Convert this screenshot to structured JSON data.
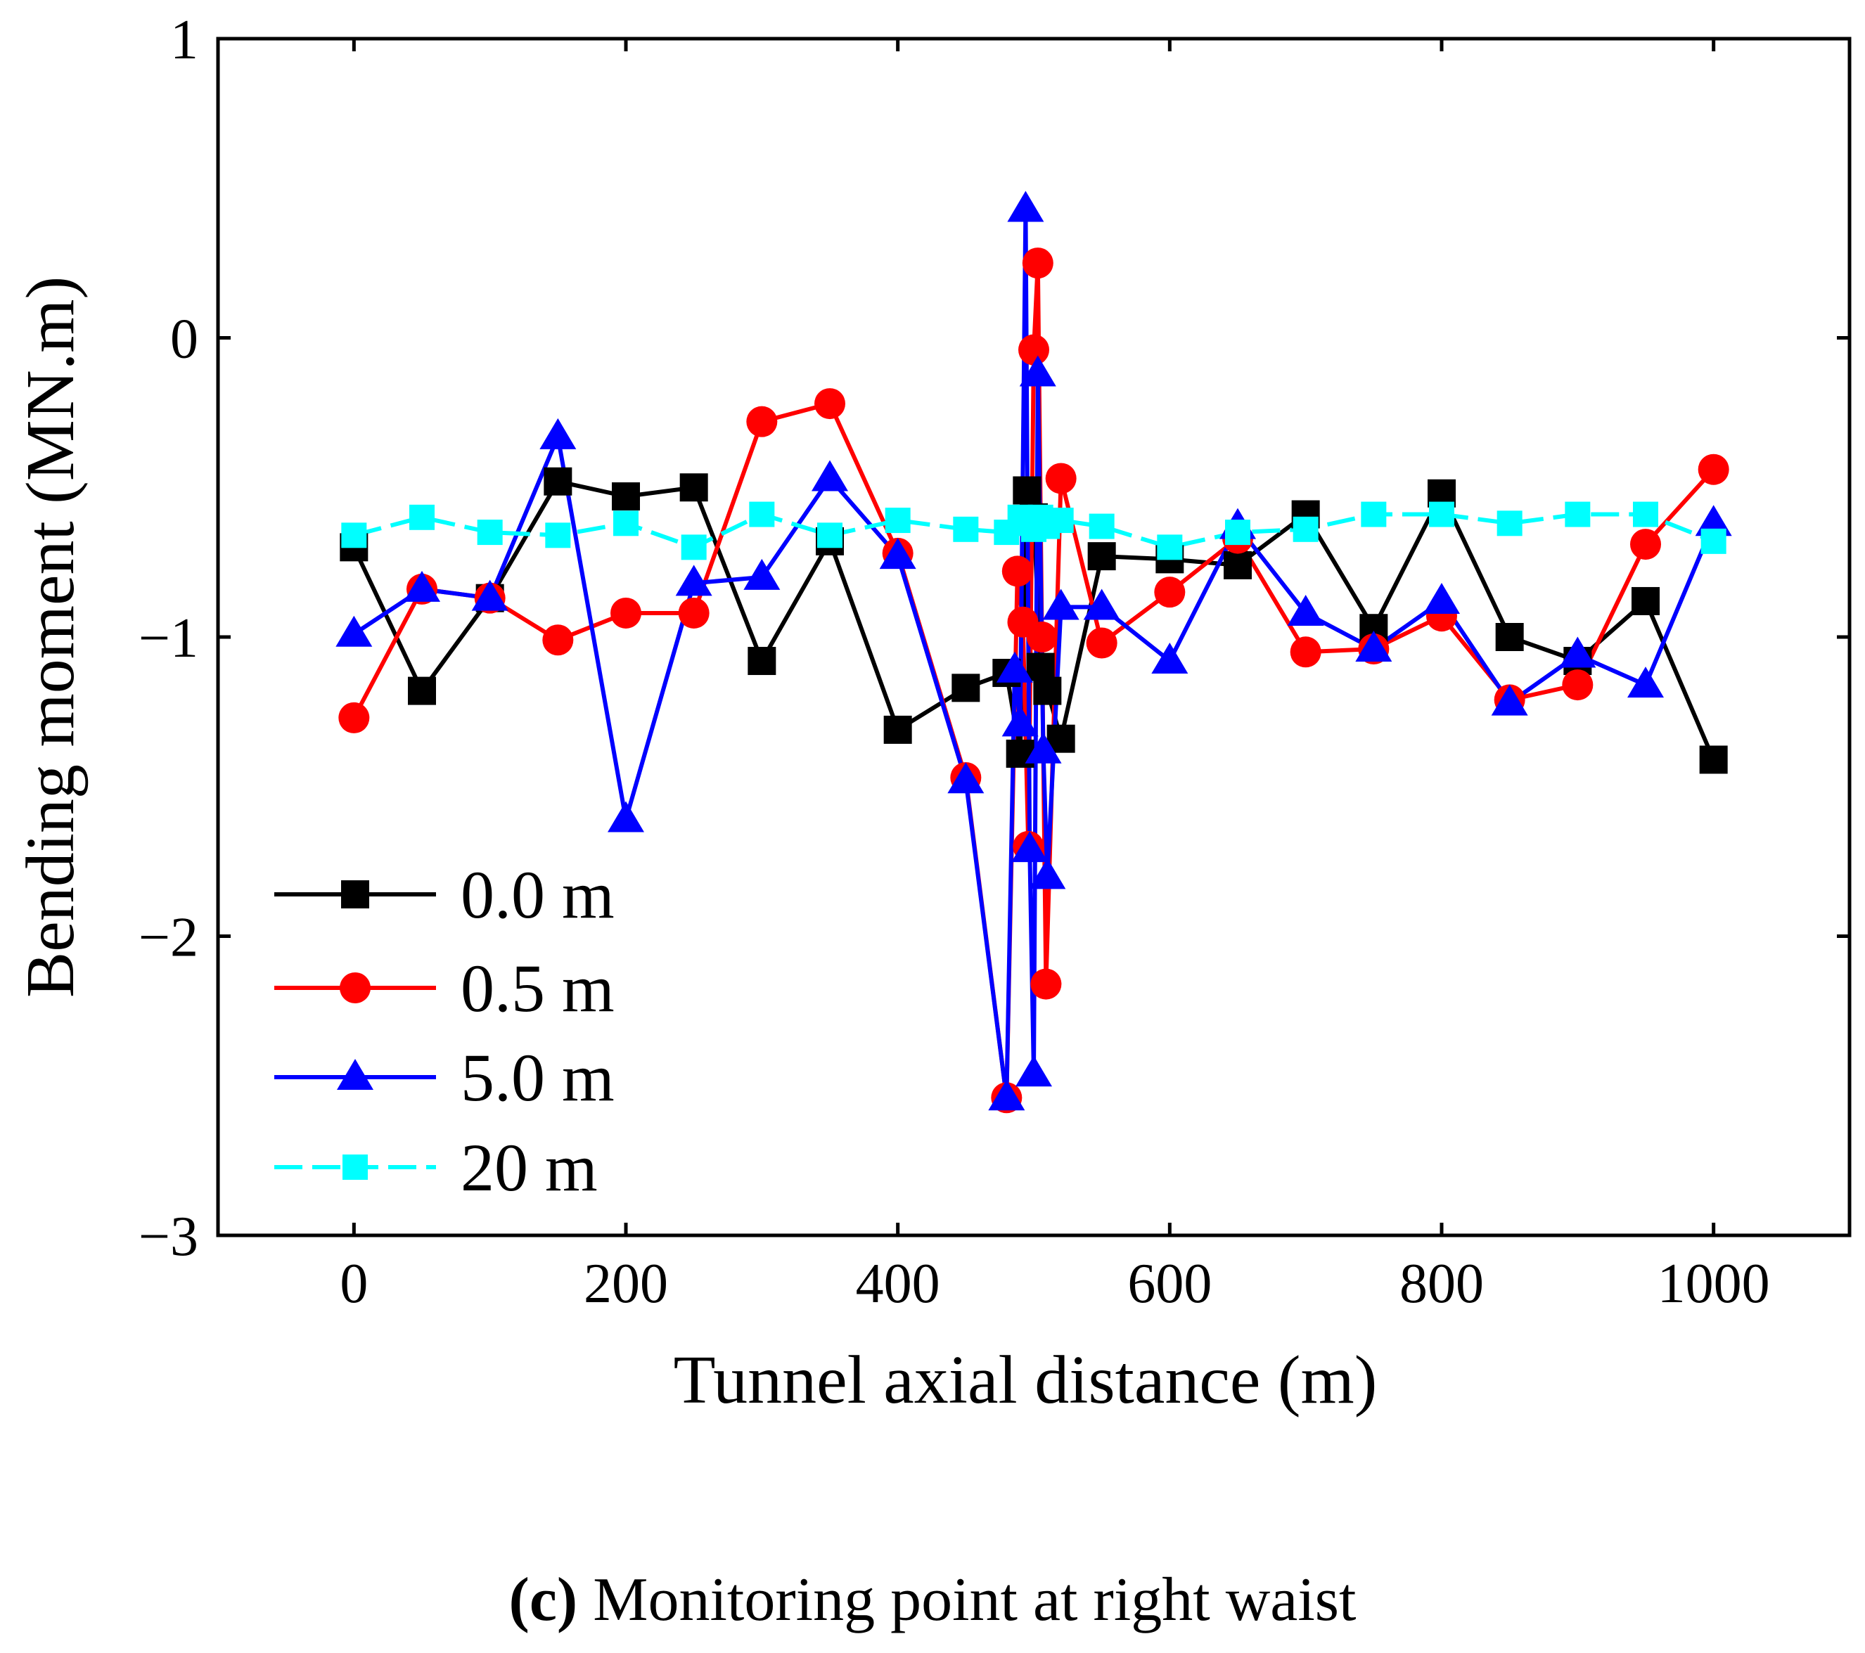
{
  "chart_data": {
    "type": "line",
    "title": "",
    "xlabel": "Tunnel axial distance (m)",
    "ylabel": "Bending moment (MN.m)",
    "xlim": [
      -100,
      1100
    ],
    "ylim": [
      -3,
      1
    ],
    "xticks": [
      0,
      200,
      400,
      600,
      800,
      1000
    ],
    "yticks": [
      -3,
      -2,
      -1,
      0,
      1
    ],
    "ytick_labels": [
      "−3",
      "−2",
      "−1",
      "0",
      "1"
    ],
    "grid": false,
    "legend_position": "bottom-left",
    "series": [
      {
        "name": "0.0 m",
        "color": "#000000",
        "marker": "square",
        "dashed": false,
        "x": [
          0,
          50,
          100,
          150,
          200,
          250,
          300,
          350,
          400,
          450,
          480,
          490,
          495,
          500,
          505,
          510,
          520,
          550,
          600,
          650,
          700,
          750,
          800,
          850,
          900,
          950,
          1000
        ],
        "y": [
          -0.7,
          -1.18,
          -0.87,
          -0.48,
          -0.53,
          -0.5,
          -1.08,
          -0.68,
          -1.31,
          -1.17,
          -1.12,
          -1.39,
          -0.51,
          -0.6,
          -1.1,
          -1.18,
          -1.34,
          -0.73,
          -0.74,
          -0.76,
          -0.59,
          -0.97,
          -0.52,
          -1.0,
          -1.08,
          -0.88,
          -1.41
        ]
      },
      {
        "name": "0.5 m",
        "color": "#ff0000",
        "marker": "circle",
        "dashed": false,
        "x": [
          0,
          50,
          100,
          150,
          200,
          250,
          300,
          350,
          400,
          450,
          480,
          488,
          492,
          496,
          500,
          503,
          506,
          509,
          520,
          550,
          600,
          650,
          700,
          750,
          800,
          850,
          900,
          950,
          1000
        ],
        "y": [
          -1.27,
          -0.84,
          -0.87,
          -1.01,
          -0.92,
          -0.92,
          -0.28,
          -0.22,
          -0.72,
          -1.47,
          -2.54,
          -0.78,
          -0.95,
          -1.7,
          -0.04,
          0.25,
          -1.0,
          -2.16,
          -0.47,
          -1.02,
          -0.85,
          -0.67,
          -1.05,
          -1.04,
          -0.93,
          -1.21,
          -1.16,
          -0.69,
          -0.44
        ]
      },
      {
        "name": "5.0 m",
        "color": "#0000ff",
        "marker": "triangle",
        "dashed": false,
        "x": [
          0,
          50,
          100,
          150,
          200,
          250,
          300,
          350,
          400,
          450,
          480,
          486,
          490,
          494,
          497,
          500,
          503,
          507,
          510,
          520,
          550,
          600,
          650,
          700,
          750,
          800,
          850,
          900,
          950,
          1000
        ],
        "y": [
          -0.99,
          -0.84,
          -0.87,
          -0.33,
          -1.61,
          -0.82,
          -0.8,
          -0.47,
          -0.73,
          -1.48,
          -2.54,
          -1.11,
          -1.29,
          0.43,
          -1.71,
          -2.46,
          -0.12,
          -1.38,
          -1.8,
          -0.9,
          -0.9,
          -1.08,
          -0.63,
          -0.92,
          -1.04,
          -0.88,
          -1.22,
          -1.06,
          -1.16,
          -0.62
        ]
      },
      {
        "name": "20 m",
        "color": "#00ffff",
        "marker": "square",
        "dashed": true,
        "x": [
          0,
          50,
          100,
          150,
          200,
          250,
          300,
          350,
          400,
          450,
          480,
          490,
          495,
          500,
          505,
          510,
          520,
          550,
          600,
          650,
          700,
          750,
          800,
          850,
          900,
          950,
          1000
        ],
        "y": [
          -0.66,
          -0.6,
          -0.65,
          -0.66,
          -0.62,
          -0.7,
          -0.59,
          -0.66,
          -0.61,
          -0.64,
          -0.65,
          -0.6,
          -0.62,
          -0.64,
          -0.6,
          -0.63,
          -0.61,
          -0.63,
          -0.7,
          -0.65,
          -0.64,
          -0.59,
          -0.59,
          -0.62,
          -0.59,
          -0.59,
          -0.68
        ]
      }
    ]
  },
  "caption": {
    "tag": "(c)",
    "text": " Monitoring point at right waist"
  }
}
